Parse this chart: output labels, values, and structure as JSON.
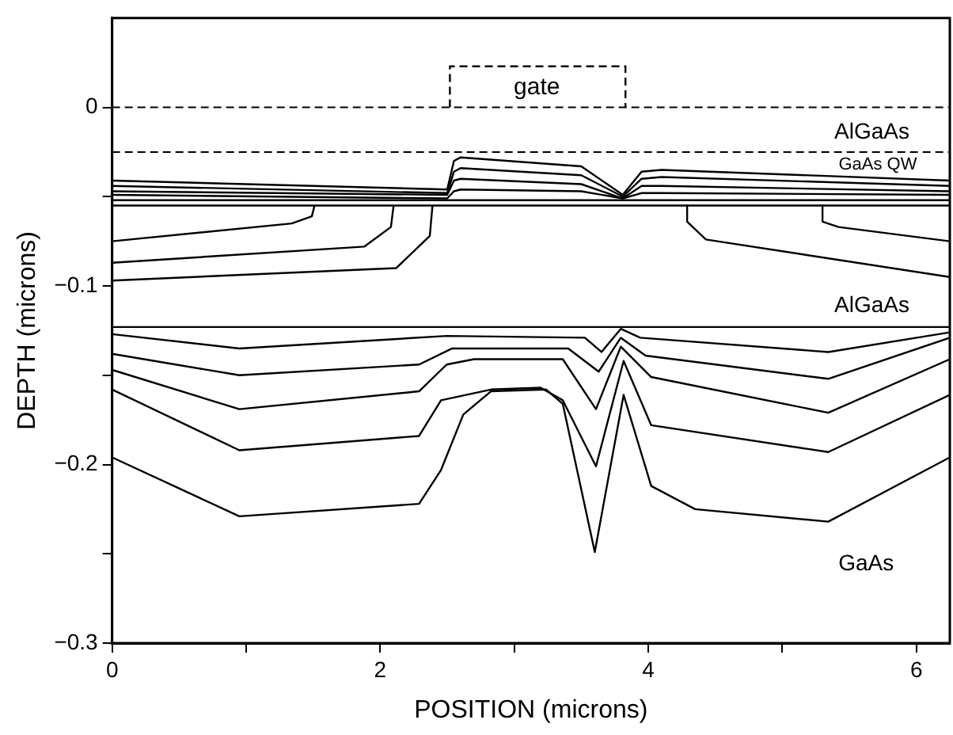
{
  "chart_data": {
    "type": "line",
    "xlabel": "POSITION (microns)",
    "ylabel": "DEPTH (microns)",
    "xlim": [
      0,
      6.25
    ],
    "ylim": [
      -0.3,
      0.05
    ],
    "xticks": [
      0,
      {
        "value": 1,
        "label": null
      },
      2,
      {
        "value": 3,
        "label": null
      },
      4,
      {
        "value": 5,
        "label": null
      },
      6
    ],
    "yticks": [
      {
        "value": -0.3,
        "label": "−0.3"
      },
      {
        "value": -0.25,
        "label": null
      },
      {
        "value": -0.2,
        "label": "−0.2"
      },
      {
        "value": -0.15,
        "label": null
      },
      {
        "value": -0.1,
        "label": "−0.1"
      },
      {
        "value": -0.05,
        "label": null
      },
      0
    ],
    "grid": false,
    "legend": false,
    "marker": "none",
    "ref_lines": [
      {
        "axis": "y",
        "value": 0,
        "line_style": "dashed",
        "color": "#000000"
      },
      {
        "axis": "y",
        "value": -0.025,
        "line_style": "dashed",
        "color": "#000000"
      }
    ],
    "annotations": [
      "gate",
      "AlGaAs",
      "GaAs QW",
      "AlGaAs",
      "GaAs"
    ],
    "series": [
      {
        "color": "#000000",
        "line_style": "dashed",
        "x": [
          2.52,
          2.52,
          3.83,
          3.83
        ],
        "values": [
          0,
          0.023,
          0.023,
          0
        ]
      },
      {
        "color": "#000000",
        "x": [
          0,
          2.5,
          2.55,
          2.6,
          3.5,
          3.81,
          3.95,
          4.1,
          6.25
        ],
        "values": [
          -0.041,
          -0.046,
          -0.03,
          -0.028,
          -0.033,
          -0.049,
          -0.036,
          -0.035,
          -0.041
        ]
      },
      {
        "color": "#000000",
        "x": [
          0,
          2.5,
          2.55,
          2.6,
          3.5,
          3.81,
          3.95,
          4.1,
          6.25
        ],
        "values": [
          -0.044,
          -0.048,
          -0.036,
          -0.034,
          -0.038,
          -0.05,
          -0.04,
          -0.039,
          -0.044
        ]
      },
      {
        "color": "#000000",
        "x": [
          0,
          2.5,
          2.55,
          2.6,
          3.5,
          3.81,
          3.95,
          4.1,
          6.25
        ],
        "values": [
          -0.047,
          -0.049,
          -0.041,
          -0.04,
          -0.043,
          -0.051,
          -0.044,
          -0.044,
          -0.047
        ]
      },
      {
        "color": "#000000",
        "x": [
          0,
          2.5,
          2.55,
          2.6,
          3.5,
          3.81,
          3.95,
          4.1,
          6.25
        ],
        "values": [
          -0.049,
          -0.051,
          -0.047,
          -0.046,
          -0.047,
          -0.051,
          -0.048,
          -0.048,
          -0.049
        ]
      },
      {
        "color": "#000000",
        "x": [
          0,
          6.25
        ],
        "values": [
          -0.052,
          -0.052
        ]
      },
      {
        "color": "#000000",
        "x": [
          0,
          6.25
        ],
        "values": [
          -0.055,
          -0.055
        ]
      },
      {
        "color": "#000000",
        "x": [
          1.51,
          1.49,
          1.34,
          0
        ],
        "values": [
          -0.055,
          -0.061,
          -0.065,
          -0.075
        ]
      },
      {
        "color": "#000000",
        "x": [
          2.1,
          2.08,
          1.88,
          0
        ],
        "values": [
          -0.055,
          -0.067,
          -0.078,
          -0.087
        ]
      },
      {
        "color": "#000000",
        "x": [
          2.39,
          2.37,
          2.12,
          0
        ],
        "values": [
          -0.055,
          -0.072,
          -0.09,
          -0.097
        ]
      },
      {
        "color": "#000000",
        "x": [
          4.29,
          4.29,
          4.43,
          6.25
        ],
        "values": [
          -0.055,
          -0.064,
          -0.074,
          -0.095
        ]
      },
      {
        "color": "#000000",
        "x": [
          5.3,
          5.3,
          5.42,
          6.25
        ],
        "values": [
          -0.055,
          -0.064,
          -0.067,
          -0.075
        ]
      },
      {
        "color": "#000000",
        "x": [
          0,
          6.25
        ],
        "values": [
          -0.123,
          -0.123
        ]
      },
      {
        "color": "#000000",
        "x": [
          0,
          0.949,
          2.496,
          3.527,
          3.651,
          3.795,
          3.94,
          5.343,
          6.25
        ],
        "values": [
          -0.127,
          -0.135,
          -0.128,
          -0.129,
          -0.137,
          -0.124,
          -0.129,
          -0.137,
          -0.126
        ]
      },
      {
        "color": "#000000",
        "x": [
          0,
          0.949,
          2.29,
          2.537,
          3.403,
          3.63,
          3.795,
          3.98,
          5.343,
          6.25
        ],
        "values": [
          -0.138,
          -0.15,
          -0.144,
          -0.135,
          -0.135,
          -0.148,
          -0.129,
          -0.139,
          -0.152,
          -0.129
        ]
      },
      {
        "color": "#000000",
        "x": [
          0,
          0.949,
          2.29,
          2.496,
          2.7,
          3.362,
          3.61,
          3.795,
          4.022,
          5.343,
          6.25
        ],
        "values": [
          -0.147,
          -0.169,
          -0.159,
          -0.144,
          -0.141,
          -0.141,
          -0.169,
          -0.134,
          -0.151,
          -0.171,
          -0.141
        ]
      },
      {
        "color": "#000000",
        "x": [
          0,
          0.949,
          2.29,
          2.454,
          2.826,
          3.197,
          3.362,
          3.61,
          3.816,
          4.022,
          5.343,
          6.25
        ],
        "values": [
          -0.158,
          -0.192,
          -0.184,
          -0.164,
          -0.158,
          -0.157,
          -0.164,
          -0.201,
          -0.142,
          -0.178,
          -0.193,
          -0.161
        ]
      },
      {
        "color": "#000000",
        "x": [
          0,
          0.949,
          2.29,
          2.454,
          2.62,
          2.826,
          3.238,
          3.362,
          3.601,
          3.816,
          4.022,
          4.35,
          5.343,
          6.25
        ],
        "values": [
          -0.196,
          -0.229,
          -0.222,
          -0.203,
          -0.172,
          -0.159,
          -0.158,
          -0.166,
          -0.249,
          -0.161,
          -0.212,
          -0.225,
          -0.232,
          -0.196
        ]
      }
    ]
  }
}
